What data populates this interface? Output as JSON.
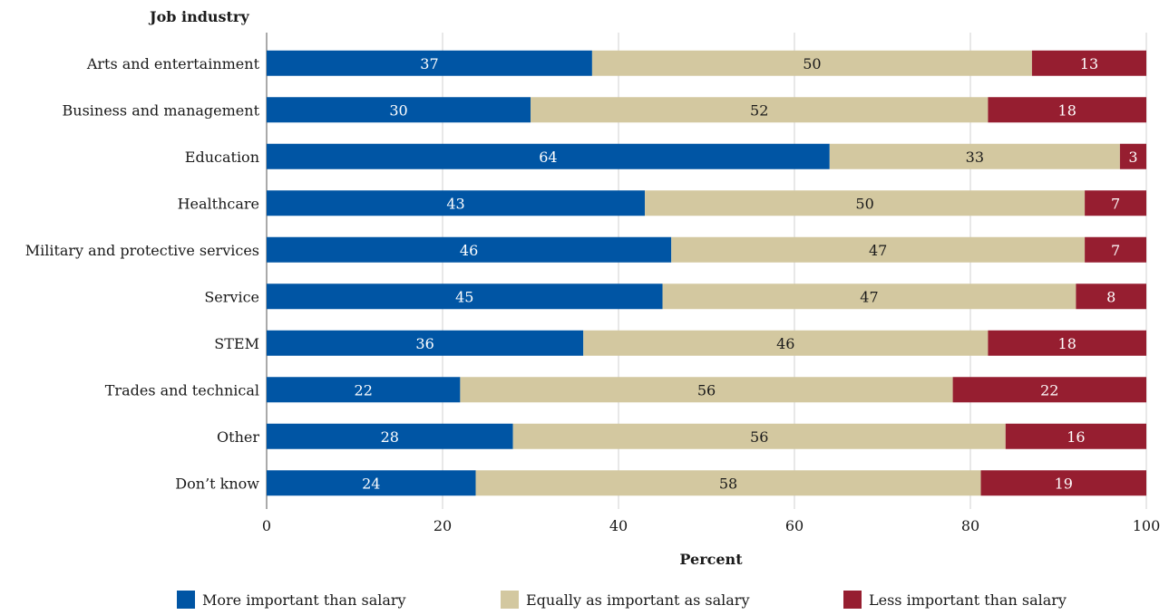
{
  "chart_data": {
    "type": "bar",
    "orientation": "horizontal",
    "stacked": true,
    "ylabel": "Job industry",
    "xlabel": "Percent",
    "xlim": [
      0,
      100
    ],
    "xticks": [
      0,
      20,
      40,
      60,
      80,
      100
    ],
    "grid": "vertical",
    "legend_position": "bottom",
    "categories": [
      "Arts and entertainment",
      "Business and management",
      "Education",
      "Healthcare",
      "Military and protective services",
      "Service",
      "STEM",
      "Trades and technical",
      "Other",
      "Don’t know"
    ],
    "series": [
      {
        "name": "More important than salary",
        "color": "#0055a4",
        "label_color": "#ffffff",
        "values": [
          37,
          30,
          64,
          43,
          46,
          45,
          36,
          22,
          28,
          24
        ]
      },
      {
        "name": "Equally as important as salary",
        "color": "#d3c8a0",
        "label_color": "#1a1a1a",
        "values": [
          50,
          52,
          33,
          50,
          47,
          47,
          46,
          56,
          56,
          58
        ]
      },
      {
        "name": "Less important than salary",
        "color": "#961e30",
        "label_color": "#ffffff",
        "values": [
          13,
          18,
          3,
          7,
          7,
          8,
          18,
          22,
          16,
          19
        ]
      }
    ]
  }
}
